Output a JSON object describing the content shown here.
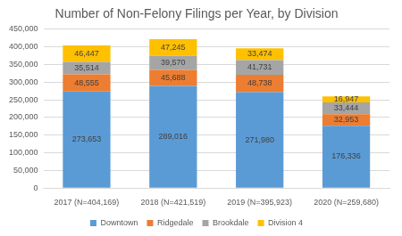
{
  "chart_data": {
    "type": "bar",
    "title": "Number of Non-Felony Filings per Year, by Division",
    "categories": [
      "2017 (N=404,169)",
      "2018 (N=421,519)",
      "2019 (N=395,923)",
      "2020 (N=259,680)"
    ],
    "series": [
      {
        "name": "Downtown",
        "color": "#5b9bd5",
        "values": [
          273653,
          289016,
          271980,
          176336
        ],
        "value_labels": [
          "273,653",
          "289,016",
          "271,980",
          "176,336"
        ]
      },
      {
        "name": "Ridgedale",
        "color": "#ed7d31",
        "values": [
          48555,
          45688,
          48738,
          32953
        ],
        "value_labels": [
          "48,555",
          "45,688",
          "48,738",
          "32,953"
        ]
      },
      {
        "name": "Brookdale",
        "color": "#a5a5a5",
        "values": [
          35514,
          39570,
          41731,
          33444
        ],
        "value_labels": [
          "35,514",
          "39,570",
          "41,731",
          "33,444"
        ]
      },
      {
        "name": "Division 4",
        "color": "#ffc000",
        "values": [
          46447,
          47245,
          33474,
          16947
        ],
        "value_labels": [
          "46,447",
          "47,245",
          "33,474",
          "16,947"
        ]
      }
    ],
    "ylim": [
      0,
      450000
    ],
    "yticks": [
      0,
      {
        "value": 50000,
        "label": "50,000"
      },
      {
        "value": 100000,
        "label": "100,000"
      },
      {
        "value": 150000,
        "label": "150,000"
      },
      {
        "value": 200000,
        "label": "200,000"
      },
      {
        "value": 250000,
        "label": "250,000"
      },
      {
        "value": 300000,
        "label": "300,000"
      },
      {
        "value": 350000,
        "label": "350,000"
      },
      {
        "value": 400000,
        "label": "400,000"
      },
      {
        "value": 450000,
        "label": "450,000"
      }
    ],
    "stacked": true,
    "grid": true,
    "legend": "bottom",
    "data_labels": true
  }
}
